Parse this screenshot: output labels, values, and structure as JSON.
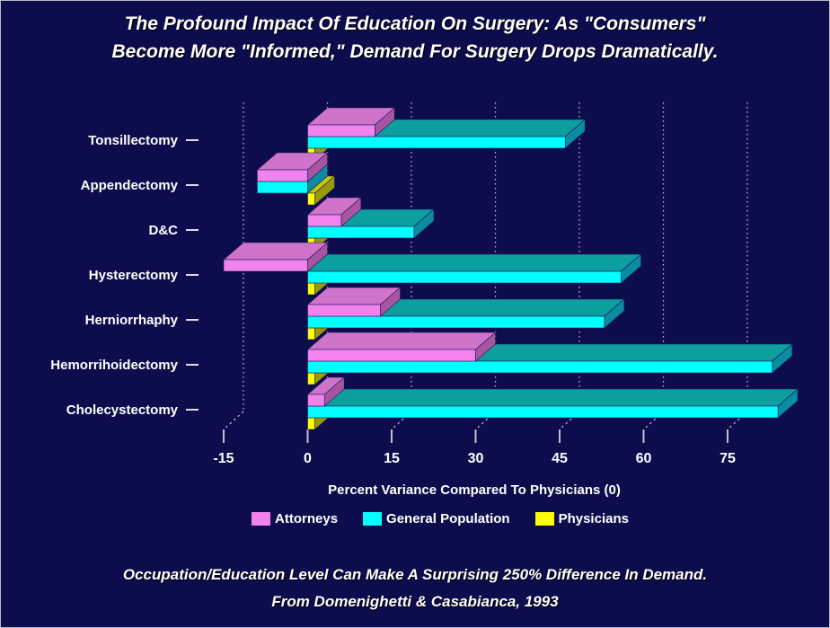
{
  "title": {
    "line1": "The Profound Impact Of Education On Surgery: As \"Consumers\"",
    "line2": "Become More \"Informed,\" Demand For Surgery Drops Dramatically."
  },
  "chart_data": {
    "type": "bar",
    "orientation": "horizontal-3d",
    "categories": [
      "Tonsillectomy",
      "Appendectomy",
      "D&C",
      "Hysterectomy",
      "Herniorrhaphy",
      "Hemorrihoidectomy",
      "Cholecystectomy"
    ],
    "series": [
      {
        "name": "Attorneys",
        "color_key": "attorneys",
        "values": [
          12,
          -9,
          6,
          -15,
          13,
          30,
          3
        ]
      },
      {
        "name": "General Population",
        "color_key": "general_population",
        "values": [
          46,
          -9,
          19,
          56,
          53,
          83,
          84
        ]
      },
      {
        "name": "Physicians",
        "color_key": "physicians",
        "values": [
          0,
          0,
          0,
          0,
          0,
          0,
          0
        ]
      }
    ],
    "xlabel": "Percent Variance Compared To Physicians (0)",
    "x_ticks": [
      -15,
      0,
      15,
      30,
      45,
      60,
      75
    ],
    "xlim": [
      -20,
      92
    ],
    "grid": true,
    "grid_style": "dotted-vertical",
    "legend_position": "bottom"
  },
  "captions": {
    "line1": "Occupation/Education Level Can Make A Surprising 250% Difference In Demand.",
    "line2": "From Domenighetti & Casabianca, 1993"
  },
  "colors": {
    "background": "#0d0d4e",
    "text": "#ffffff",
    "grid": "#c0c0cc",
    "attorneys": {
      "front": "#f383ec",
      "top": "#cf74ca",
      "side": "#a855a0"
    },
    "general_population": {
      "front": "#00ffff",
      "top": "#0d9e9e",
      "side": "#0a8ca2"
    },
    "physicians": {
      "front": "#ffff00",
      "top": "#c8c808",
      "side": "#99990a"
    }
  }
}
